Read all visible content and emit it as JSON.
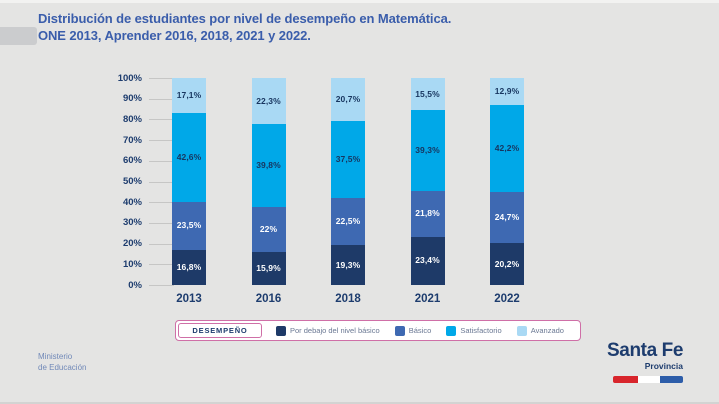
{
  "slide": {
    "title_line1": "Distribución de estudiantes por nivel de desempeño en Matemática.",
    "title_line2": "ONE 2013, Aprender 2016, 2018, 2021 y 2022.",
    "footer": {
      "line1": "Ministerio",
      "line2": "de Educación"
    },
    "brand": {
      "name": "Santa Fe",
      "subtitle": "Provincia"
    },
    "colors": {
      "background": "#e4e4e3",
      "title_text": "#3a5dab",
      "navy_text": "#1d3c6e",
      "legend_border": "#cf6fa7",
      "legend_text": "#6a7893",
      "footer_text": "#7189b8",
      "flag_red": "#d8252c",
      "flag_white": "#ffffff",
      "flag_blue": "#2d5da9"
    }
  },
  "chart_data": {
    "type": "bar",
    "stacked": true,
    "title": "Distribución de estudiantes por nivel de desempeño en Matemática. ONE 2013, Aprender 2016, 2018, 2021 y 2022.",
    "categories": [
      "2013",
      "2016",
      "2018",
      "2021",
      "2022"
    ],
    "series": [
      {
        "name": "Por debajo del nivel básico",
        "color": "#1e3a68",
        "label_color": "#ffffff",
        "values": [
          16.8,
          15.9,
          19.3,
          23.4,
          20.2
        ],
        "labels": [
          "16,8%",
          "15,9%",
          "19,3%",
          "23,4%",
          "20,2%"
        ]
      },
      {
        "name": "Básico",
        "color": "#3e69b2",
        "label_color": "#ffffff",
        "values": [
          23.5,
          22,
          22.5,
          21.8,
          24.7
        ],
        "labels": [
          "23,5%",
          "22%",
          "22,5%",
          "21,8%",
          "24,7%"
        ]
      },
      {
        "name": "Satisfactorio",
        "color": "#00a8e8",
        "label_color": "#17355f",
        "values": [
          42.6,
          39.8,
          37.5,
          39.3,
          42.2
        ],
        "labels": [
          "42,6%",
          "39,8%",
          "37,5%",
          "39,3%",
          "42,2%"
        ]
      },
      {
        "name": "Avanzado",
        "color": "#a9d9f4",
        "label_color": "#17355f",
        "values": [
          17.1,
          22.3,
          20.7,
          15.5,
          12.9
        ],
        "labels": [
          "17,1%",
          "22,3%",
          "20,7%",
          "15,5%",
          "12,9%"
        ]
      }
    ],
    "ylim": [
      0,
      100
    ],
    "ytick_labels": [
      "100%",
      "90%",
      "80%",
      "70%",
      "60%",
      "50%",
      "40%",
      "30%",
      "20%",
      "10%",
      "0%"
    ],
    "legend_title": "DESEMPEÑO",
    "legend_position": "bottom",
    "grid": "axis tick stubs only"
  }
}
